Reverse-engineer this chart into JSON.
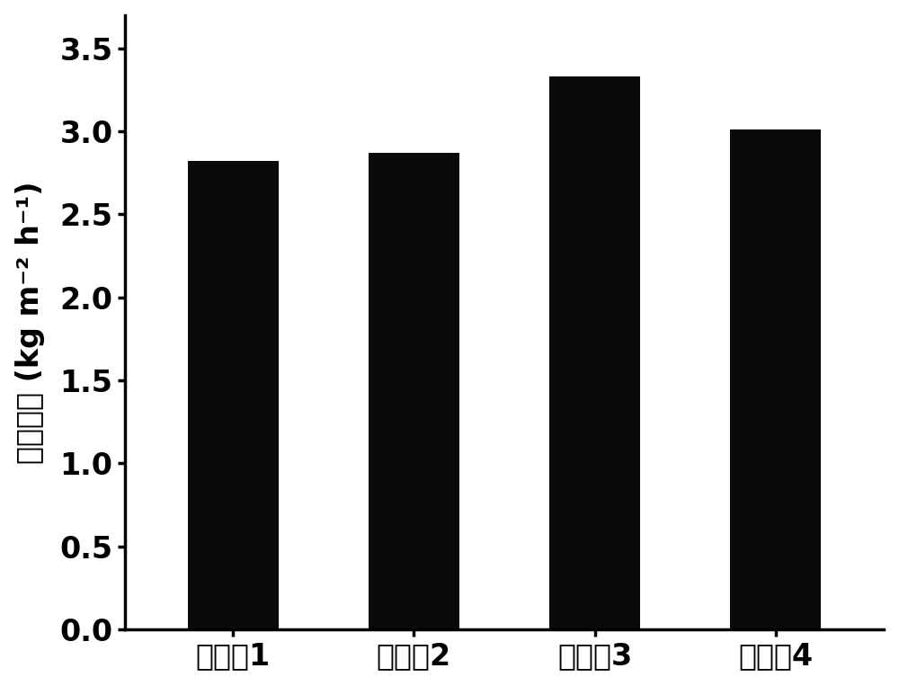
{
  "categories": [
    "实施例1",
    "实施例2",
    "实施例3",
    "实施例4"
  ],
  "values": [
    2.82,
    2.87,
    3.33,
    3.01
  ],
  "bar_color": "#0a0a0a",
  "ylabel_chinese": "蔣发速率",
  "ylabel_units": "(kg m⁻² h⁻¹)",
  "ylim": [
    0.0,
    3.7
  ],
  "yticks": [
    0.0,
    0.5,
    1.0,
    1.5,
    2.0,
    2.5,
    3.0,
    3.5
  ],
  "bar_width": 0.5,
  "background_color": "#ffffff",
  "tick_fontsize": 24,
  "label_fontsize": 24,
  "axis_linewidth": 2.5
}
